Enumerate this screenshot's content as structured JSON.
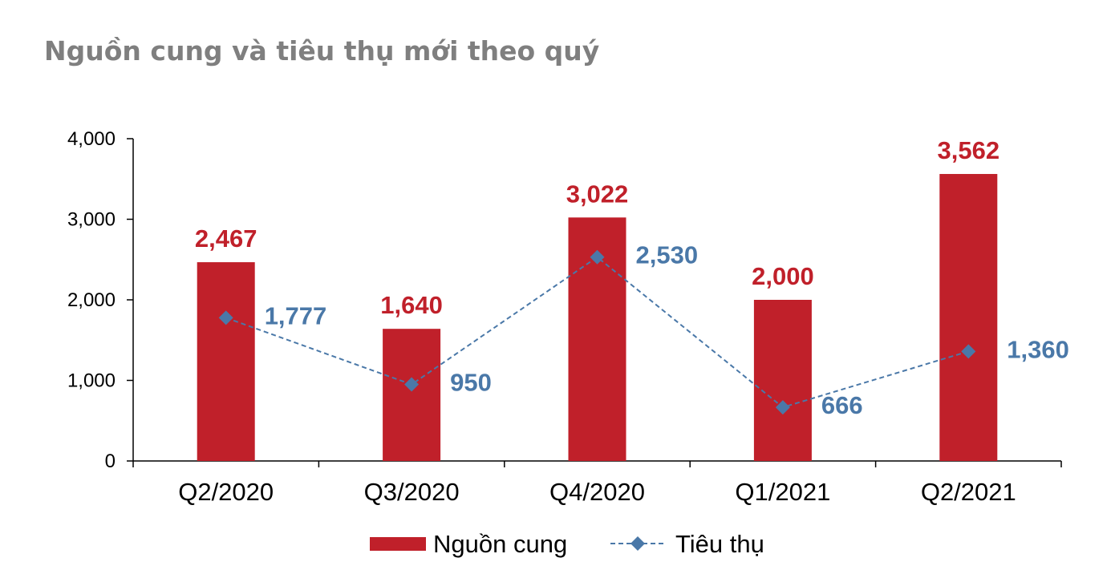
{
  "title": "Nguồn cung và tiêu thụ mới theo quý",
  "chart_data": {
    "type": "bar",
    "categories": [
      "Q2/2020",
      "Q3/2020",
      "Q4/2020",
      "Q1/2021",
      "Q2/2021"
    ],
    "series": [
      {
        "name": "Nguồn cung",
        "kind": "bar",
        "color": "#c0202a",
        "values": [
          2467,
          1640,
          3022,
          2000,
          3562
        ],
        "labels": [
          "2,467",
          "1,640",
          "3,022",
          "2,000",
          "3,562"
        ]
      },
      {
        "name": "Tiêu thụ",
        "kind": "line-dashed-diamond",
        "color": "#4a78a8",
        "values": [
          1777,
          950,
          2530,
          666,
          1360
        ],
        "labels": [
          "1,777",
          "950",
          "2,530",
          "666",
          "1,360"
        ]
      }
    ],
    "ylim": [
      0,
      4000
    ],
    "yticks": [
      "0",
      "1,000",
      "2,000",
      "3,000",
      "4,000"
    ],
    "legend_position": "bottom",
    "grid": false
  }
}
